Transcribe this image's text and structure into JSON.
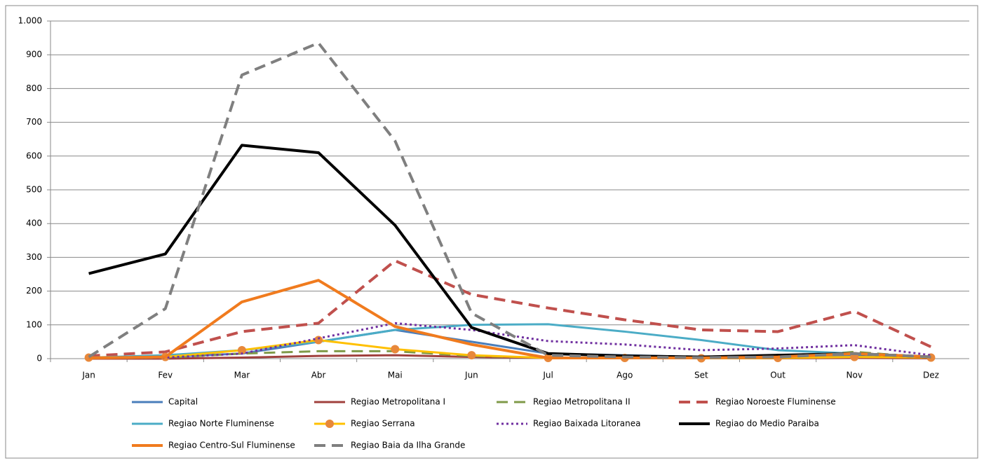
{
  "chart_data": {
    "type": "line",
    "categories": [
      "Jan",
      "Fev",
      "Mar",
      "Abr",
      "Mai",
      "Jun",
      "Jul",
      "Ago",
      "Set",
      "Out",
      "Nov",
      "Dez"
    ],
    "ylim": [
      0,
      1000
    ],
    "yticks": [
      0,
      100,
      200,
      300,
      400,
      500,
      600,
      700,
      800,
      900,
      {
        "value": 1000,
        "label": "1.000"
      }
    ],
    "grid": true,
    "legend": "bottom",
    "series": [
      {
        "name": "Capital",
        "color": "#4a7ebb",
        "linewidth": 3,
        "values": [
          2,
          5,
          15,
          50,
          85,
          50,
          15,
          10,
          5,
          5,
          10,
          5
        ]
      },
      {
        "name": "Regiao Metropolitana I",
        "color": "#a0403d",
        "linewidth": 3,
        "values": [
          0,
          0,
          3,
          8,
          10,
          5,
          2,
          1,
          1,
          1,
          2,
          1
        ]
      },
      {
        "name": "Regiao Metropolitana II",
        "color": "#7f9a48",
        "linewidth": 3,
        "dash": "dashed",
        "values": [
          2,
          3,
          15,
          22,
          22,
          8,
          3,
          2,
          2,
          3,
          20,
          3
        ]
      },
      {
        "name": "Regiao Noroeste Fluminense",
        "color": "#c0504d",
        "linewidth": 4,
        "dash": "dashed",
        "values": [
          8,
          20,
          80,
          105,
          290,
          190,
          150,
          115,
          85,
          80,
          140,
          35
        ]
      },
      {
        "name": "Regiao Norte Fluminense",
        "color": "#4bacc6",
        "linewidth": 3,
        "values": [
          3,
          10,
          25,
          50,
          85,
          100,
          102,
          80,
          55,
          25,
          15,
          5
        ]
      },
      {
        "name": "Regiao Serrana",
        "color": "#ffc000",
        "linewidth": 3,
        "marker": "circle",
        "marker_color": "#e8883a",
        "values": [
          3,
          5,
          25,
          55,
          28,
          10,
          2,
          2,
          1,
          2,
          5,
          3
        ]
      },
      {
        "name": "Regiao Baixada Litoranea",
        "color": "#7030a0",
        "linewidth": 3,
        "dash": "dotted",
        "values": [
          2,
          3,
          15,
          60,
          105,
          85,
          52,
          42,
          25,
          30,
          40,
          10
        ]
      },
      {
        "name": "Regiao do Medio Paraiba",
        "color": "#000000",
        "linewidth": 4,
        "values": [
          252,
          310,
          632,
          610,
          395,
          92,
          15,
          8,
          5,
          10,
          15,
          5
        ]
      },
      {
        "name": "Regiao Centro-Sul Fluminense",
        "color": "#f07b1e",
        "linewidth": 4,
        "values": [
          2,
          5,
          168,
          232,
          95,
          42,
          2,
          2,
          2,
          5,
          15,
          5
        ]
      },
      {
        "name": "Regiao Baia da Ilha Grande",
        "color": "#7f7f7f",
        "linewidth": 4,
        "dash": "dashed",
        "values": [
          5,
          148,
          840,
          935,
          645,
          135,
          10,
          5,
          3,
          5,
          15,
          5
        ]
      }
    ]
  }
}
